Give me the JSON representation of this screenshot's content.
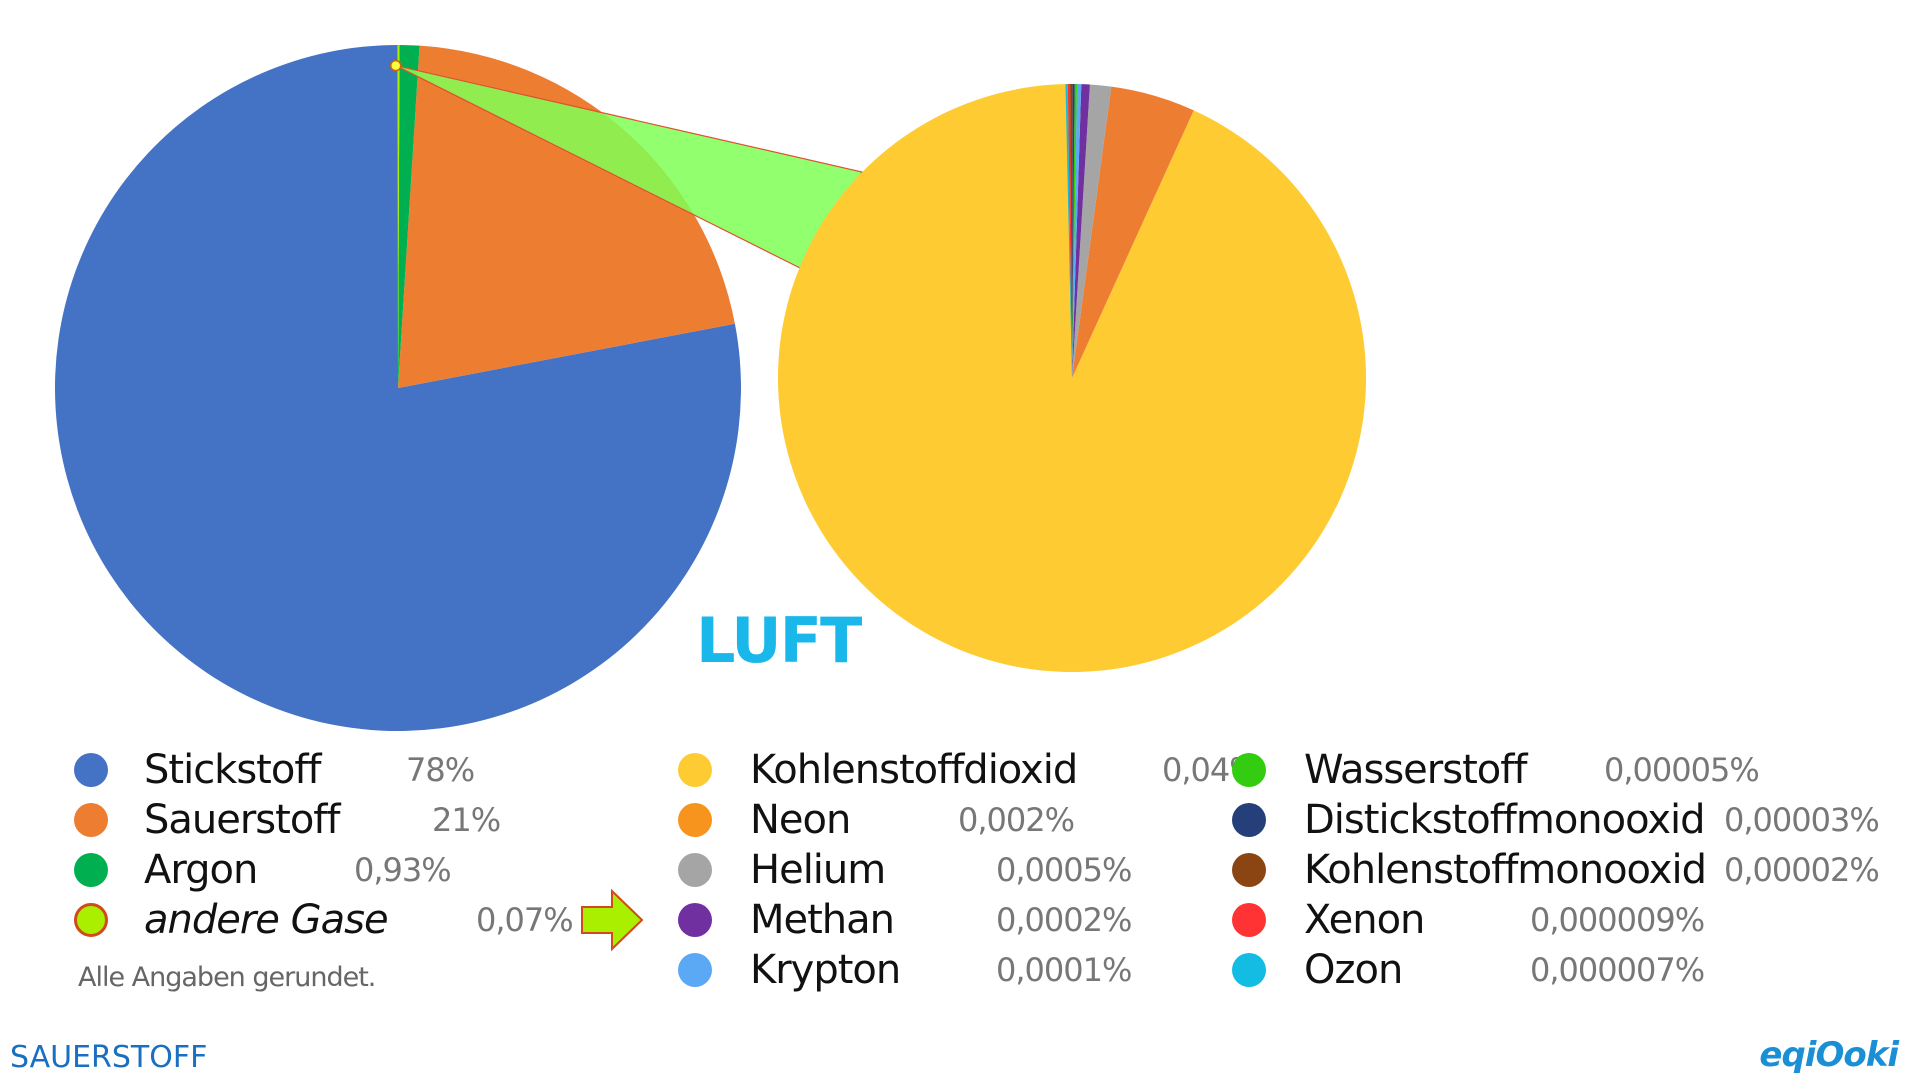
{
  "chart_data": [
    {
      "type": "pie",
      "title": "",
      "slices": [
        {
          "label": "Stickstoff",
          "value": 78,
          "color": "#4472c4"
        },
        {
          "label": "Sauerstoff",
          "value": 21,
          "color": "#ed7d31"
        },
        {
          "label": "Argon",
          "value": 0.93,
          "color": "#00b050"
        },
        {
          "label": "andere Gase",
          "value": 0.07,
          "color": "#aaee00"
        }
      ]
    },
    {
      "type": "pie",
      "title": "",
      "slices": [
        {
          "label": "Kohlenstoffdioxid",
          "value": 0.04,
          "color": "#fecb33"
        },
        {
          "label": "Neon",
          "value": 0.002,
          "color": "#ed7d31"
        },
        {
          "label": "Helium",
          "value": 0.0005,
          "color": "#a5a5a5"
        },
        {
          "label": "Methan",
          "value": 0.0002,
          "color": "#7030a0"
        },
        {
          "label": "Krypton",
          "value": 0.0001,
          "color": "#5ba8f5"
        },
        {
          "label": "Wasserstoff",
          "value": 5e-05,
          "color": "#33cc11"
        },
        {
          "label": "Distickstoffmonooxid",
          "value": 3e-05,
          "color": "#243f7a"
        },
        {
          "label": "Kohlenstoffmonooxid",
          "value": 2e-05,
          "color": "#8b4513"
        },
        {
          "label": "Xenon",
          "value": 9e-06,
          "color": "#ff3333"
        },
        {
          "label": "Ozon",
          "value": 7e-06,
          "color": "#12bce3"
        }
      ]
    }
  ],
  "colors": {
    "connector": "#7fff55",
    "connector_border": "#e05030"
  },
  "title": "LUFT",
  "legend": {
    "col1": [
      {
        "name": "Stickstoff",
        "value": "78%",
        "color": "#4472c4"
      },
      {
        "name": "Sauerstoff",
        "value": "21%",
        "color": "#ed7d31"
      },
      {
        "name": "Argon",
        "value": "0,93%",
        "color": "#00b050"
      },
      {
        "name": "andere Gase",
        "value": "0,07%",
        "color": "#aaee00",
        "icon": "arrow-right-icon"
      }
    ],
    "col2": [
      {
        "name": "Kohlenstoffdioxid",
        "value": "0,04%",
        "color": "#fecb33"
      },
      {
        "name": "Neon",
        "value": "0,002%",
        "color": "#f7941d"
      },
      {
        "name": "Helium",
        "value": "0,0005%",
        "color": "#a5a5a5"
      },
      {
        "name": "Methan",
        "value": "0,0002%",
        "color": "#7030a0"
      },
      {
        "name": "Krypton",
        "value": "0,0001%",
        "color": "#5ba8f5"
      }
    ],
    "col3": [
      {
        "name": "Wasserstoff",
        "value": "0,00005%",
        "color": "#33cc11"
      },
      {
        "name": "Distickstoffmonooxid",
        "value": "0,00003%",
        "color": "#243f7a"
      },
      {
        "name": "Kohlenstoffmonooxid",
        "value": "0,00002%",
        "color": "#8b4513"
      },
      {
        "name": "Xenon",
        "value": "0,000009%",
        "color": "#ff3333"
      },
      {
        "name": "Ozon",
        "value": "0,000007%",
        "color": "#12bce3"
      }
    ]
  },
  "note": "Alle Angaben gerundet.",
  "footer": {
    "topic": "SAUERSTOFF",
    "logo": "eqiOoki"
  }
}
